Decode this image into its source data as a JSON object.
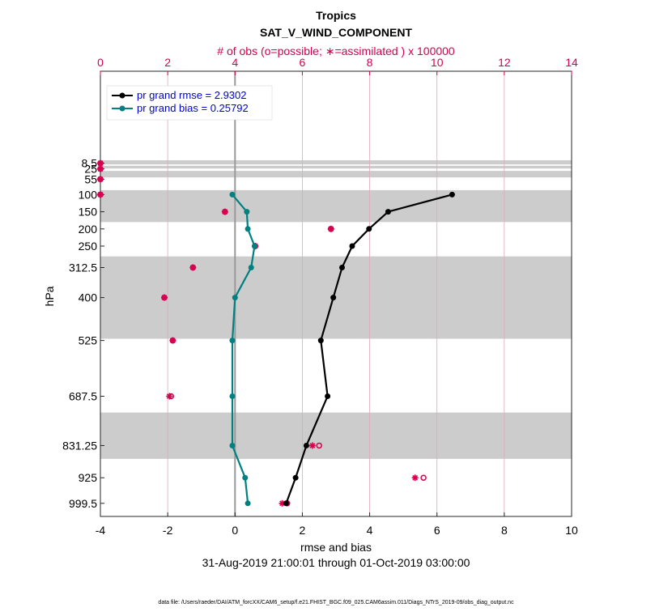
{
  "chart_data": {
    "type": "line",
    "title": "Tropics",
    "subtitle": "SAT_V_WIND_COMPONENT",
    "top_axis_label": "# of obs (o=possible; ∗=assimilated ) x 100000",
    "xlabel": "rmse and bias",
    "ylabel": "hPa",
    "date_range": "31-Aug-2019 21:00:01 through 01-Oct-2019 03:00:00",
    "footnote": "data file: /Users/raeder/DAI/ATM_forcXX/CAM6_setup/f.e21.FHIST_BGC.f09_025.CAM6assim.011/Diags_NTrS_2019-09/obs_diag_output.nc",
    "xlim": [
      -4,
      10
    ],
    "xticks": [
      "-4",
      "-2",
      "0",
      "2",
      "4",
      "6",
      "8",
      "10"
    ],
    "top_xlim": [
      0,
      14
    ],
    "top_xticks": [
      "0",
      "2",
      "4",
      "6",
      "8",
      "10",
      "12",
      "14"
    ],
    "levels": [
      8.5,
      25,
      55,
      100,
      150,
      200,
      250,
      312.5,
      400,
      525,
      687.5,
      831.25,
      925,
      999.5
    ],
    "level_labels": [
      "8.5",
      "25",
      "55",
      "100",
      "150",
      "200",
      "250",
      "312.5",
      "400",
      "525",
      "687.5",
      "831.25",
      "925",
      "999.5"
    ],
    "series": [
      {
        "name": "pr grand rmse = 2.9302",
        "color": "#000000",
        "levels": [
          100,
          150,
          200,
          250,
          312.5,
          400,
          525,
          687.5,
          831.25,
          925,
          999.5
        ],
        "values": [
          6.45,
          4.55,
          3.98,
          3.48,
          3.18,
          2.92,
          2.55,
          2.75,
          2.12,
          1.8,
          1.52
        ]
      },
      {
        "name": "pr grand bias = 0.25792",
        "color": "#008080",
        "levels": [
          100,
          150,
          200,
          250,
          312.5,
          400,
          525,
          687.5,
          831.25,
          925,
          999.5
        ],
        "values": [
          -0.08,
          0.35,
          0.38,
          0.58,
          0.48,
          0.0,
          -0.08,
          -0.08,
          -0.08,
          0.3,
          0.38
        ]
      }
    ],
    "obs_counts": {
      "color": "#d6004f",
      "levels": [
        8.5,
        25,
        55,
        100,
        150,
        200,
        250,
        312.5,
        400,
        525,
        687.5,
        831.25,
        925,
        999.5
      ],
      "assimilated": [
        0.0,
        0.0,
        0.0,
        0.0,
        3.7,
        6.85,
        4.6,
        2.75,
        1.9,
        2.15,
        2.05,
        6.3,
        9.35,
        5.4
      ],
      "possible": [
        0.0,
        0.0,
        0.0,
        0.0,
        3.7,
        6.85,
        4.6,
        2.75,
        1.9,
        2.15,
        2.1,
        6.5,
        9.6,
        5.55
      ]
    },
    "grey_bands": [
      [
        0,
        0.006
      ],
      [
        0.006,
        0.012
      ],
      [
        0.016,
        0.024
      ],
      [
        0.031,
        0.05
      ],
      [
        0.087,
        0.1
      ],
      [
        0.097,
        0.18
      ],
      [
        0.28,
        0.52
      ],
      [
        0.735,
        0.87
      ]
    ]
  }
}
